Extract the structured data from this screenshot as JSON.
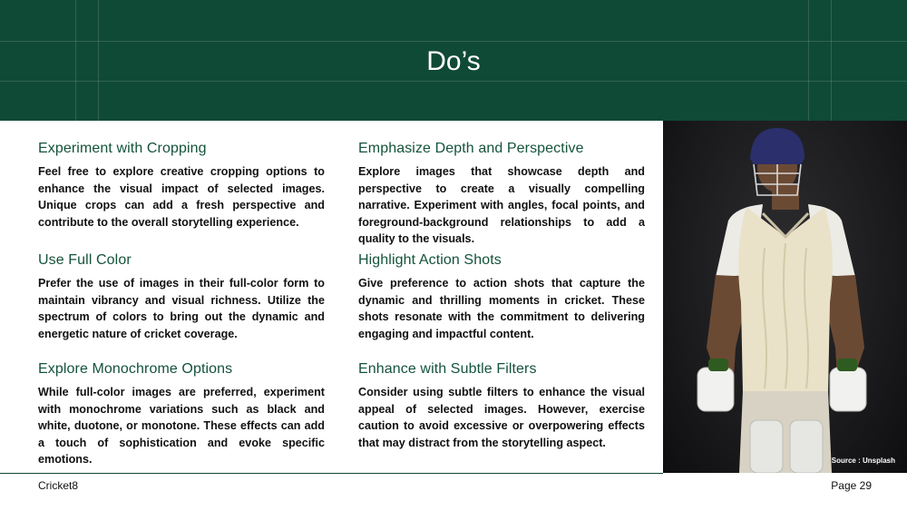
{
  "header": {
    "title": "Do’s"
  },
  "sections": [
    {
      "heading": "Experiment with Cropping",
      "body": "Feel free to explore creative cropping options to enhance the visual impact of selected images. Unique crops can add a fresh perspective and contribute to the overall storytelling experience."
    },
    {
      "heading": "Emphasize Depth and Perspective",
      "body": "Explore images that showcase depth and perspective to create a visually compelling narrative. Experiment with angles, focal points, and foreground-background relationships to add a  quality to the visuals."
    },
    {
      "heading": "Use Full Color",
      "body": "Prefer the use of images in their full-color form to maintain vibrancy and visual richness. Utilize the spectrum of colors to bring out the dynamic and energetic nature of cricket coverage."
    },
    {
      "heading": "Highlight Action Shots",
      "body": "Give preference to action shots that capture the dynamic and thrilling moments in cricket. These shots resonate with the commitment to delivering engaging and impactful content."
    },
    {
      "heading": "Explore Monochrome Options",
      "body": "While full-color images are preferred, experiment with monochrome variations such as black and white, duotone, or monotone. These effects can add a touch of sophistication and evoke specific emotions."
    },
    {
      "heading": "Enhance with Subtle Filters",
      "body": "Consider using subtle filters to enhance the visual appeal of selected images. However, exercise caution to avoid excessive or overpowering effects that may distract from the storytelling aspect."
    }
  ],
  "photo": {
    "credit": "Source : Unsplash"
  },
  "footer": {
    "brand": "Cricket8",
    "page": "Page 29"
  },
  "colors": {
    "brand_green": "#0f4a36",
    "heading_green": "#14533b"
  }
}
